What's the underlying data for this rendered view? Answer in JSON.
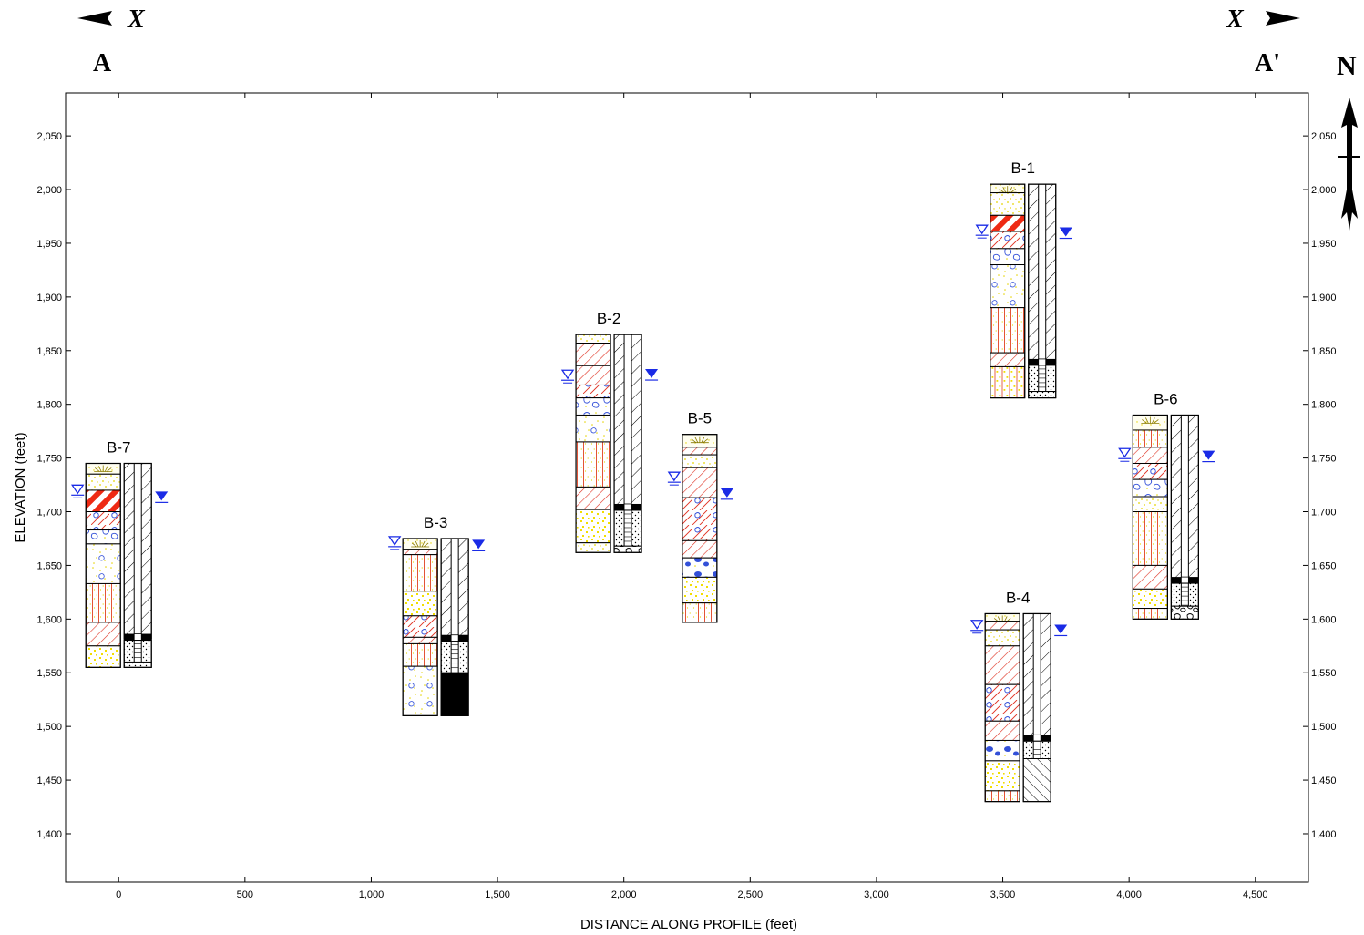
{
  "header": {
    "left_x": "X",
    "right_x": "X",
    "left_label": "A",
    "right_label": "A'",
    "north": "N"
  },
  "chart_data": {
    "type": "boring-log cross-section",
    "xlabel": "DISTANCE ALONG PROFILE (feet)",
    "ylabel": "ELEVATION (feet)",
    "xlim": [
      -210,
      4710
    ],
    "ylim": [
      1355,
      2090
    ],
    "x_ticks": [
      0,
      500,
      1000,
      1500,
      2000,
      2500,
      3000,
      3500,
      4000,
      4500
    ],
    "x_tick_labels": [
      "0",
      "500",
      "1,000",
      "1,500",
      "2,000",
      "2,500",
      "3,000",
      "3,500",
      "4,000",
      "4,500"
    ],
    "y_ticks": [
      1400,
      1450,
      1500,
      1550,
      1600,
      1650,
      1700,
      1750,
      1800,
      1850,
      1900,
      1950,
      2000,
      2050
    ],
    "y_tick_labels": [
      "1,400",
      "1,450",
      "1,500",
      "1,550",
      "1,600",
      "1,650",
      "1,700",
      "1,750",
      "1,800",
      "1,850",
      "1,900",
      "1,950",
      "2,000",
      "2,050"
    ],
    "borings": [
      {
        "name": "B-7",
        "x": 0,
        "top": 1745,
        "bottom": 1555,
        "water_first": 1718,
        "water_static": 1712,
        "layers": [
          {
            "top": 1745,
            "bottom": 1735,
            "pattern": "topsoil"
          },
          {
            "top": 1735,
            "bottom": 1720,
            "pattern": "sand"
          },
          {
            "top": 1720,
            "bottom": 1700,
            "pattern": "clay-red"
          },
          {
            "top": 1700,
            "bottom": 1683,
            "pattern": "clay-gravel"
          },
          {
            "top": 1683,
            "bottom": 1670,
            "pattern": "gravel"
          },
          {
            "top": 1670,
            "bottom": 1633,
            "pattern": "gravel-sand"
          },
          {
            "top": 1633,
            "bottom": 1597,
            "pattern": "silt"
          },
          {
            "top": 1597,
            "bottom": 1575,
            "pattern": "clay"
          },
          {
            "top": 1575,
            "bottom": 1555,
            "pattern": "sand-coarse"
          }
        ],
        "well": {
          "screen_top": 1582,
          "screen_bottom": 1560,
          "bottom_fill": "sand"
        }
      },
      {
        "name": "B-3",
        "x": 1255,
        "top": 1675,
        "bottom": 1510,
        "water_first": 1670,
        "water_static": 1667,
        "layers": [
          {
            "top": 1675,
            "bottom": 1665,
            "pattern": "topsoil"
          },
          {
            "top": 1665,
            "bottom": 1660,
            "pattern": "clay"
          },
          {
            "top": 1660,
            "bottom": 1626,
            "pattern": "silt"
          },
          {
            "top": 1626,
            "bottom": 1603,
            "pattern": "sand-coarse"
          },
          {
            "top": 1603,
            "bottom": 1583,
            "pattern": "clay-gravel"
          },
          {
            "top": 1583,
            "bottom": 1577,
            "pattern": "clay"
          },
          {
            "top": 1577,
            "bottom": 1556,
            "pattern": "silt"
          },
          {
            "top": 1556,
            "bottom": 1510,
            "pattern": "gravel-sand"
          }
        ],
        "well": {
          "screen_top": 1581,
          "screen_bottom": 1550,
          "bottom_fill": "solid"
        }
      },
      {
        "name": "B-2",
        "x": 1940,
        "top": 1865,
        "bottom": 1662,
        "water_first": 1825,
        "water_static": 1826,
        "layers": [
          {
            "top": 1865,
            "bottom": 1857,
            "pattern": "sand"
          },
          {
            "top": 1857,
            "bottom": 1836,
            "pattern": "clay"
          },
          {
            "top": 1836,
            "bottom": 1818,
            "pattern": "clay"
          },
          {
            "top": 1818,
            "bottom": 1806,
            "pattern": "clay-gravel"
          },
          {
            "top": 1806,
            "bottom": 1790,
            "pattern": "gravel"
          },
          {
            "top": 1790,
            "bottom": 1765,
            "pattern": "gravel-sand"
          },
          {
            "top": 1765,
            "bottom": 1723,
            "pattern": "silt"
          },
          {
            "top": 1723,
            "bottom": 1702,
            "pattern": "clay"
          },
          {
            "top": 1702,
            "bottom": 1671,
            "pattern": "sand-coarse"
          },
          {
            "top": 1671,
            "bottom": 1662,
            "pattern": "sand"
          }
        ],
        "well": {
          "screen_top": 1703,
          "screen_bottom": 1668,
          "bottom_fill": "gravel"
        }
      },
      {
        "name": "B-5",
        "x": 2300,
        "top": 1772,
        "bottom": 1597,
        "water_first": 1730,
        "water_static": 1715,
        "layers": [
          {
            "top": 1772,
            "bottom": 1760,
            "pattern": "topsoil"
          },
          {
            "top": 1760,
            "bottom": 1753,
            "pattern": "clay"
          },
          {
            "top": 1753,
            "bottom": 1741,
            "pattern": "sand"
          },
          {
            "top": 1741,
            "bottom": 1713,
            "pattern": "clay"
          },
          {
            "top": 1713,
            "bottom": 1673,
            "pattern": "clay-gravel"
          },
          {
            "top": 1673,
            "bottom": 1657,
            "pattern": "clay"
          },
          {
            "top": 1657,
            "bottom": 1639,
            "pattern": "gravel-blue"
          },
          {
            "top": 1639,
            "bottom": 1615,
            "pattern": "sand-coarse"
          },
          {
            "top": 1615,
            "bottom": 1597,
            "pattern": "silt"
          }
        ]
      },
      {
        "name": "B-1",
        "x": 3580,
        "top": 2005,
        "bottom": 1806,
        "water_first": 1960,
        "water_static": 1958,
        "layers": [
          {
            "top": 2005,
            "bottom": 1997,
            "pattern": "topsoil"
          },
          {
            "top": 1997,
            "bottom": 1976,
            "pattern": "sand"
          },
          {
            "top": 1976,
            "bottom": 1961,
            "pattern": "clay-red"
          },
          {
            "top": 1961,
            "bottom": 1945,
            "pattern": "clay-gravel"
          },
          {
            "top": 1945,
            "bottom": 1930,
            "pattern": "gravel"
          },
          {
            "top": 1930,
            "bottom": 1890,
            "pattern": "gravel-sand"
          },
          {
            "top": 1890,
            "bottom": 1848,
            "pattern": "silt"
          },
          {
            "top": 1848,
            "bottom": 1835,
            "pattern": "clay"
          },
          {
            "top": 1835,
            "bottom": 1806,
            "pattern": "sand-silt"
          }
        ],
        "well": {
          "screen_top": 1838,
          "screen_bottom": 1812,
          "bottom_fill": "sand"
        }
      },
      {
        "name": "B-4",
        "x": 3560,
        "top": 1605,
        "bottom": 1430,
        "water_first": 1592,
        "water_static": 1588,
        "layers": [
          {
            "top": 1605,
            "bottom": 1598,
            "pattern": "topsoil"
          },
          {
            "top": 1598,
            "bottom": 1590,
            "pattern": "clay"
          },
          {
            "top": 1590,
            "bottom": 1575,
            "pattern": "sand"
          },
          {
            "top": 1575,
            "bottom": 1539,
            "pattern": "clay"
          },
          {
            "top": 1539,
            "bottom": 1505,
            "pattern": "clay-gravel"
          },
          {
            "top": 1505,
            "bottom": 1487,
            "pattern": "clay"
          },
          {
            "top": 1487,
            "bottom": 1468,
            "pattern": "gravel-blue"
          },
          {
            "top": 1468,
            "bottom": 1440,
            "pattern": "sand-coarse"
          },
          {
            "top": 1440,
            "bottom": 1430,
            "pattern": "silt"
          }
        ],
        "well": {
          "screen_top": 1488,
          "screen_bottom": 1470,
          "bottom_fill": "hatch"
        }
      },
      {
        "name": "B-6",
        "x": 4145,
        "top": 1790,
        "bottom": 1600,
        "water_first": 1752,
        "water_static": 1750,
        "layers": [
          {
            "top": 1790,
            "bottom": 1776,
            "pattern": "topsoil"
          },
          {
            "top": 1776,
            "bottom": 1760,
            "pattern": "silt"
          },
          {
            "top": 1760,
            "bottom": 1745,
            "pattern": "clay"
          },
          {
            "top": 1745,
            "bottom": 1730,
            "pattern": "clay-gravel"
          },
          {
            "top": 1730,
            "bottom": 1714,
            "pattern": "gravel"
          },
          {
            "top": 1714,
            "bottom": 1700,
            "pattern": "sand"
          },
          {
            "top": 1700,
            "bottom": 1650,
            "pattern": "silt"
          },
          {
            "top": 1650,
            "bottom": 1628,
            "pattern": "clay"
          },
          {
            "top": 1628,
            "bottom": 1610,
            "pattern": "sand-coarse"
          },
          {
            "top": 1610,
            "bottom": 1600,
            "pattern": "silt"
          }
        ],
        "well": {
          "screen_top": 1635,
          "screen_bottom": 1612,
          "bottom_fill": "gravel"
        }
      }
    ]
  }
}
